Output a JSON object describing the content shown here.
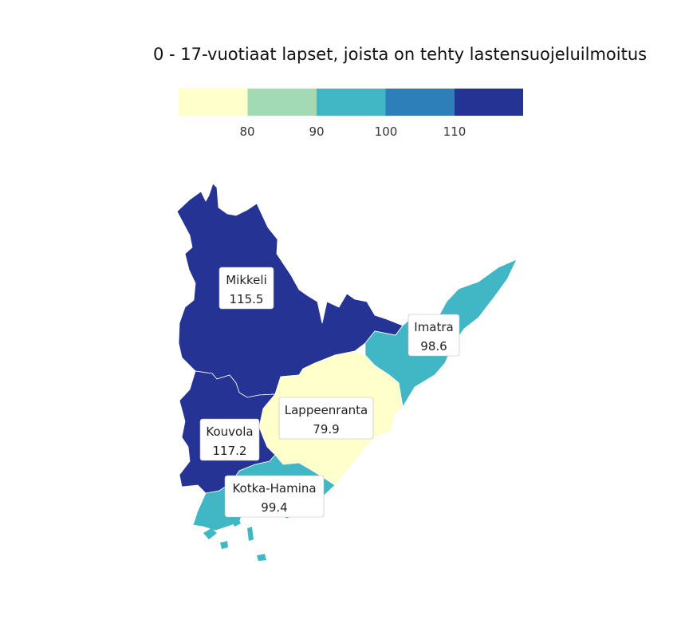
{
  "title": "0 - 17-vuotiaat lapset, joista on tehty lastensuojeluilmoitus",
  "legend": {
    "bins": [
      {
        "color": "#ffffcc"
      },
      {
        "color": "#a1dab4"
      },
      {
        "color": "#41b6c4"
      },
      {
        "color": "#2c7fb8"
      },
      {
        "color": "#253494"
      }
    ],
    "ticks": [
      "80",
      "90",
      "100",
      "110"
    ]
  },
  "regions": [
    {
      "name": "Mikkeli",
      "value": "115.5",
      "color": "#253494"
    },
    {
      "name": "Imatra",
      "value": "98.6",
      "color": "#41b6c4"
    },
    {
      "name": "Lappeenranta",
      "value": "79.9",
      "color": "#ffffcc"
    },
    {
      "name": "Kouvola",
      "value": "117.2",
      "color": "#253494"
    },
    {
      "name": "Kotka-Hamina",
      "value": "99.4",
      "color": "#41b6c4"
    }
  ]
}
